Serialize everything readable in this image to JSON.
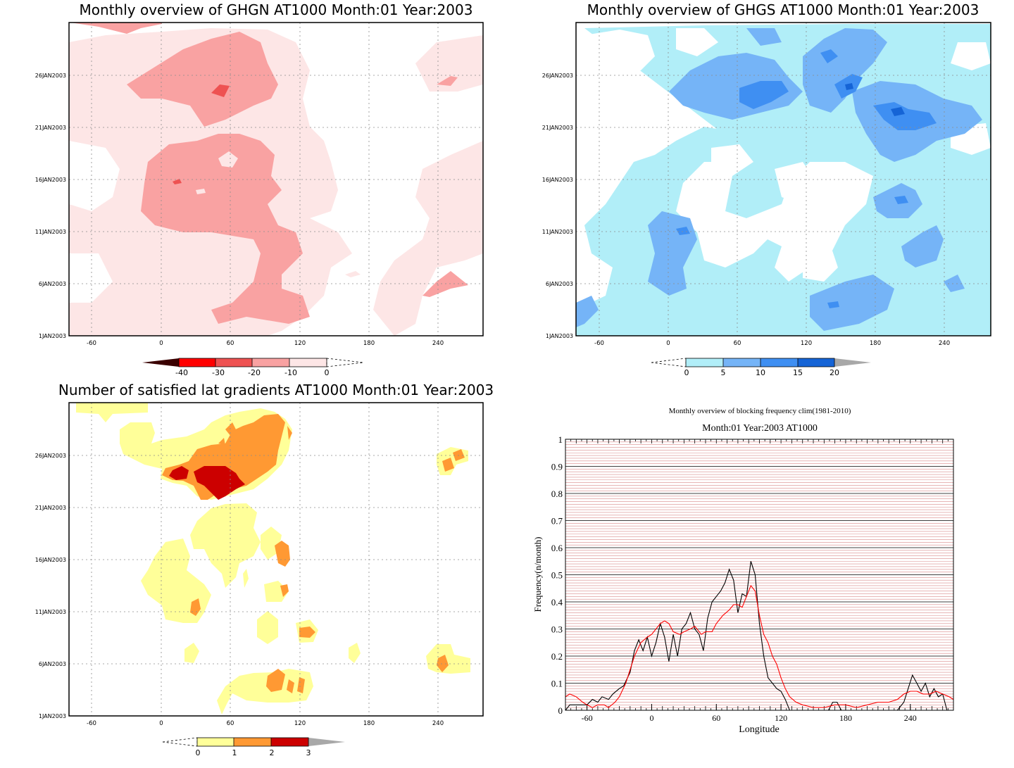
{
  "panels": {
    "ghgn": {
      "title": "Monthly overview of GHGN AT1000 Month:01 Year:2003",
      "palette": [
        "#3a0000",
        "#ff0000",
        "#ee5252",
        "#f9a2a2",
        "#fde6e6"
      ],
      "colorbar_labels": [
        "-40",
        "-30",
        "-20",
        "-10",
        "0"
      ]
    },
    "ghgs": {
      "title": "Monthly overview of GHGS AT1000 Month:01 Year:2003",
      "palette": [
        "#b1eef8",
        "#75b4f7",
        "#3f8ff2",
        "#1564d6",
        "#a8a8a8"
      ],
      "colorbar_labels": [
        "0",
        "5",
        "10",
        "15",
        "20"
      ]
    },
    "lat": {
      "title": "Number of satisfied lat gradients AT1000 Month:01 Year:2003",
      "palette": [
        "#ffff99",
        "#ff9933",
        "#cc0000",
        "#a8a8a8"
      ],
      "colorbar_labels": [
        "0",
        "1",
        "2",
        "3"
      ]
    },
    "freq": {
      "title": "Monthly overview of blocking frequency clim(1981-2010)",
      "subtitle": "Month:01 Year:2003  AT1000",
      "xlabel": "Longitude",
      "ylabel": "Frequency(n/month)"
    }
  },
  "map_axes": {
    "x_ticks": [
      "-60",
      "0",
      "60",
      "120",
      "180",
      "240"
    ],
    "y_ticks": [
      "1JAN2003",
      "6JAN2003",
      "11JAN2003",
      "16JAN2003",
      "21JAN2003",
      "26JAN2003"
    ]
  },
  "chart_data": [
    {
      "type": "heatmap",
      "title": "Monthly overview of GHGN AT1000 Month:01 Year:2003",
      "x_range": [
        -80,
        280
      ],
      "x_ticks": [
        -60,
        0,
        60,
        120,
        180,
        240
      ],
      "y_ticks": [
        "1JAN2003",
        "6JAN2003",
        "11JAN2003",
        "16JAN2003",
        "21JAN2003",
        "26JAN2003"
      ],
      "legend_levels": [
        -40,
        -30,
        -20,
        -10,
        0
      ],
      "grid": true
    },
    {
      "type": "heatmap",
      "title": "Monthly overview of GHGS AT1000 Month:01 Year:2003",
      "x_range": [
        -80,
        280
      ],
      "x_ticks": [
        -60,
        0,
        60,
        120,
        180,
        240
      ],
      "y_ticks": [
        "1JAN2003",
        "6JAN2003",
        "11JAN2003",
        "16JAN2003",
        "21JAN2003",
        "26JAN2003"
      ],
      "legend_levels": [
        0,
        5,
        10,
        15,
        20
      ],
      "grid": true
    },
    {
      "type": "heatmap",
      "title": "Number of satisfied lat gradients AT1000 Month:01 Year:2003",
      "x_range": [
        -80,
        280
      ],
      "x_ticks": [
        -60,
        0,
        60,
        120,
        180,
        240
      ],
      "y_ticks": [
        "1JAN2003",
        "6JAN2003",
        "11JAN2003",
        "16JAN2003",
        "21JAN2003",
        "26JAN2003"
      ],
      "legend_levels": [
        0,
        1,
        2,
        3
      ],
      "grid": true
    },
    {
      "type": "line",
      "title": "Monthly overview of blocking frequency clim(1981-2010)",
      "subtitle": "Month:01 Year:2003  AT1000",
      "xlabel": "Longitude",
      "ylabel": "Frequency(n/month)",
      "xlim": [
        -80,
        280
      ],
      "ylim": [
        0,
        1
      ],
      "x_ticks": [
        -60,
        0,
        60,
        120,
        180,
        240
      ],
      "y_ticks": [
        0,
        0.1,
        0.2,
        0.3,
        0.4,
        0.5,
        0.6,
        0.7,
        0.8,
        0.9,
        1
      ],
      "grid": true,
      "series": [
        {
          "color": "#000000",
          "x": [
            -80,
            -76,
            -70,
            -60,
            -55,
            -50,
            -46,
            -40,
            -36,
            -30,
            -26,
            -20,
            -16,
            -12,
            -8,
            -4,
            0,
            4,
            8,
            12,
            16,
            20,
            24,
            28,
            32,
            36,
            40,
            44,
            48,
            52,
            56,
            60,
            64,
            68,
            72,
            76,
            80,
            84,
            88,
            92,
            96,
            100,
            104,
            108,
            112,
            116,
            120,
            124,
            128,
            132,
            140,
            150,
            160,
            164,
            168,
            172,
            176,
            180,
            190,
            200,
            210,
            220,
            228,
            234,
            238,
            242,
            246,
            250,
            254,
            258,
            262,
            266,
            270,
            274
          ],
          "y": [
            0,
            0.02,
            0.02,
            0.02,
            0.04,
            0.03,
            0.05,
            0.04,
            0.06,
            0.08,
            0.09,
            0.14,
            0.22,
            0.26,
            0.22,
            0.27,
            0.2,
            0.25,
            0.32,
            0.27,
            0.18,
            0.28,
            0.2,
            0.3,
            0.32,
            0.36,
            0.3,
            0.28,
            0.22,
            0.34,
            0.4,
            0.42,
            0.44,
            0.47,
            0.52,
            0.48,
            0.36,
            0.43,
            0.42,
            0.55,
            0.5,
            0.32,
            0.2,
            0.12,
            0.1,
            0.08,
            0.07,
            0.04,
            0,
            0,
            0,
            0,
            0,
            0,
            0.03,
            0.03,
            0,
            0,
            0,
            0,
            0,
            0,
            0,
            0.03,
            0.08,
            0.13,
            0.1,
            0.07,
            0.1,
            0.05,
            0.08,
            0.05,
            0.06,
            0
          ]
        },
        {
          "color": "#ff0000",
          "x": [
            -80,
            -76,
            -70,
            -64,
            -60,
            -55,
            -50,
            -44,
            -40,
            -34,
            -30,
            -24,
            -20,
            -16,
            -10,
            -4,
            0,
            4,
            8,
            12,
            16,
            20,
            26,
            30,
            36,
            40,
            46,
            50,
            56,
            60,
            66,
            72,
            76,
            80,
            84,
            88,
            92,
            96,
            100,
            104,
            108,
            112,
            116,
            120,
            124,
            128,
            134,
            140,
            150,
            160,
            170,
            180,
            190,
            200,
            210,
            220,
            228,
            234,
            240,
            246,
            252,
            258,
            264,
            270,
            276,
            280
          ],
          "y": [
            0.05,
            0.06,
            0.05,
            0.03,
            0.02,
            0.01,
            0.02,
            0.02,
            0.01,
            0.03,
            0.05,
            0.1,
            0.15,
            0.2,
            0.25,
            0.27,
            0.28,
            0.3,
            0.32,
            0.33,
            0.32,
            0.29,
            0.28,
            0.29,
            0.3,
            0.31,
            0.28,
            0.29,
            0.29,
            0.32,
            0.35,
            0.37,
            0.39,
            0.39,
            0.38,
            0.42,
            0.46,
            0.44,
            0.35,
            0.28,
            0.25,
            0.2,
            0.17,
            0.12,
            0.08,
            0.05,
            0.03,
            0.02,
            0.01,
            0.01,
            0.02,
            0.02,
            0.01,
            0.02,
            0.03,
            0.03,
            0.04,
            0.06,
            0.07,
            0.07,
            0.06,
            0.06,
            0.07,
            0.06,
            0.05,
            0.04
          ]
        }
      ]
    }
  ]
}
